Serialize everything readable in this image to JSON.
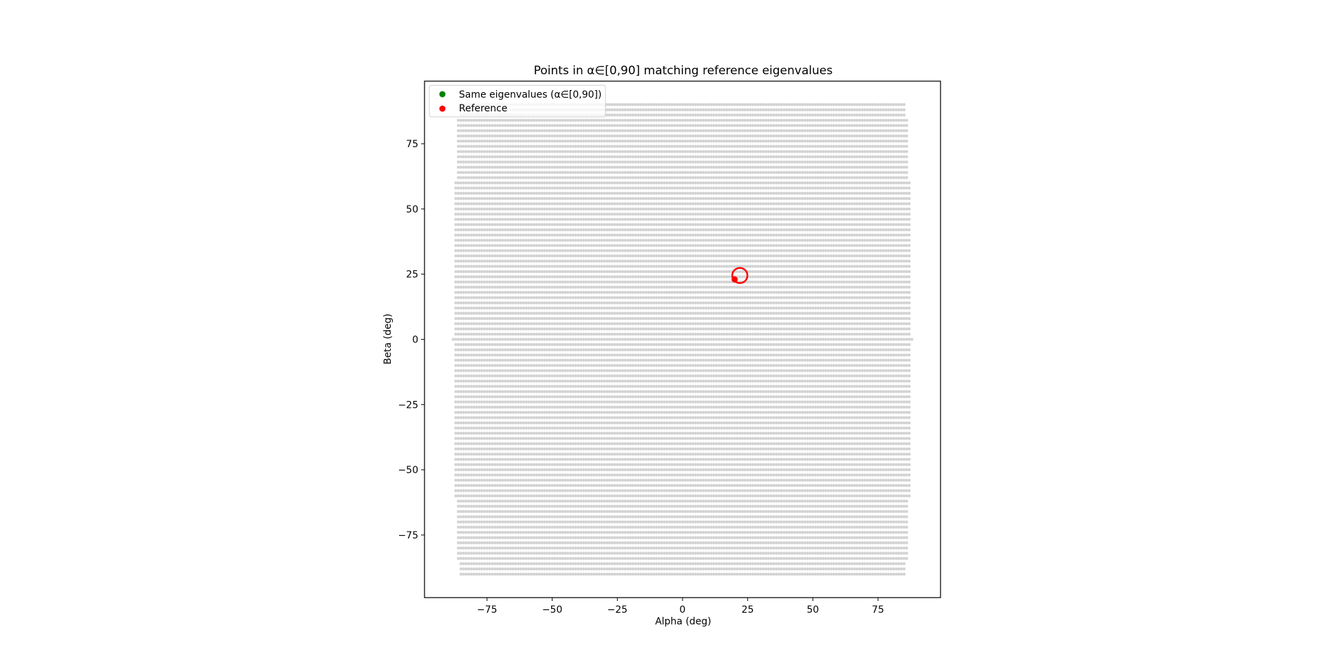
{
  "chart_data": {
    "type": "scatter",
    "title": "Points in α∈[0,90] matching reference eigenvalues",
    "xlabel": "Alpha (deg)",
    "ylabel": "Beta (deg)",
    "xlim": [
      -99,
      99
    ],
    "ylim": [
      -99,
      99
    ],
    "xticks": [
      -75,
      -50,
      -25,
      0,
      25,
      50,
      75
    ],
    "yticks": [
      -75,
      -50,
      -25,
      0,
      25,
      50,
      75
    ],
    "xtick_labels": [
      "−75",
      "−50",
      "−25",
      "0",
      "25",
      "50",
      "75"
    ],
    "ytick_labels": [
      "−75",
      "−50",
      "−25",
      "0",
      "25",
      "50",
      "75"
    ],
    "grid": false,
    "legend_position": "upper-left",
    "legend": [
      {
        "label": "Same eigenvalues (α∈[0,90])",
        "color": "#008000"
      },
      {
        "label": "Reference",
        "color": "#ff0000"
      }
    ],
    "series": [
      {
        "kind": "background-grid",
        "color": "#d3d3d3",
        "beta_range": [
          -90,
          90
        ],
        "beta_step": 2,
        "alpha_range_at_zero_beta": [
          -88,
          88
        ],
        "note_shape": "points fill a region bounded by |alpha| narrowing toward |beta|=90"
      },
      {
        "name": "Reference",
        "color": "#ff0000",
        "points": [
          {
            "x": 20,
            "y": 23
          }
        ]
      },
      {
        "kind": "highlight-circle",
        "color": "#ff0000",
        "points": [
          {
            "x": 22,
            "y": 24.5
          }
        ]
      }
    ]
  }
}
